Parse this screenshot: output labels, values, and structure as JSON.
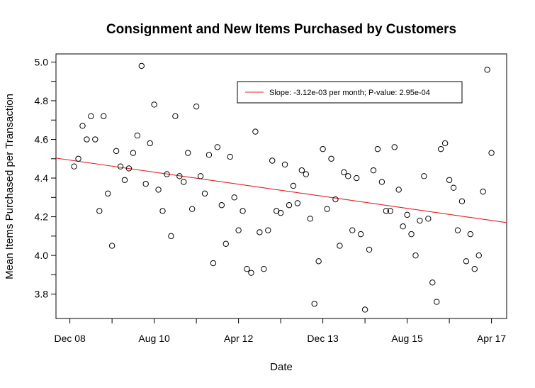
{
  "chart_data": {
    "type": "scatter",
    "title": "Consignment and New Items Purchased by Customers",
    "xlabel": "Date",
    "ylabel": "Mean Items Purchased per Transaction",
    "x_ticks": [
      "Dec 08",
      "Aug 10",
      "Apr 12",
      "Dec 13",
      "Aug 15",
      "Apr 17"
    ],
    "x_unit": "months since Dec 08",
    "x_tick_values": [
      0,
      20,
      40,
      60,
      80,
      100
    ],
    "xlim": [
      -3.3,
      103.6
    ],
    "y_ticks": [
      "3.8",
      "4.0",
      "4.2",
      "4.4",
      "4.6",
      "4.8",
      "5.0"
    ],
    "ylim": [
      3.674,
      5.042
    ],
    "grid": false,
    "legend_position": "top-right",
    "series": [
      {
        "color": "#000000",
        "marker": "open-circle",
        "x": [
          1,
          2,
          3,
          4,
          5,
          6,
          7,
          8,
          9,
          10,
          11,
          12,
          13,
          14,
          15,
          16,
          17,
          18,
          19,
          20,
          21,
          22,
          23,
          24,
          25,
          26,
          27,
          28,
          29,
          30,
          31,
          32,
          33,
          34,
          35,
          36,
          37,
          38,
          39,
          40,
          41,
          42,
          43,
          44,
          45,
          46,
          47,
          48,
          49,
          50,
          51,
          52,
          53,
          54,
          55,
          56,
          57,
          58,
          59,
          60,
          61,
          62,
          63,
          64,
          65,
          66,
          67,
          68,
          69,
          70,
          71,
          72,
          73,
          74,
          75,
          76,
          77,
          78,
          79,
          80,
          81,
          82,
          83,
          84,
          85,
          86,
          87,
          88,
          89,
          90,
          91,
          92,
          93,
          94,
          95,
          96,
          97,
          98,
          99,
          100
        ],
        "y": [
          4.46,
          4.5,
          4.67,
          4.6,
          4.72,
          4.6,
          4.23,
          4.72,
          4.32,
          4.05,
          4.54,
          4.46,
          4.39,
          4.45,
          4.53,
          4.62,
          4.98,
          4.37,
          4.58,
          4.78,
          4.34,
          4.23,
          4.42,
          4.1,
          4.72,
          4.41,
          4.38,
          4.53,
          4.24,
          4.77,
          4.41,
          4.32,
          4.52,
          3.96,
          4.56,
          4.26,
          4.06,
          4.51,
          4.3,
          4.13,
          4.23,
          3.93,
          3.91,
          4.64,
          4.12,
          3.93,
          4.13,
          4.49,
          4.23,
          4.22,
          4.47,
          4.26,
          4.36,
          4.27,
          4.44,
          4.42,
          4.19,
          3.75,
          3.97,
          4.55,
          4.24,
          4.5,
          4.29,
          4.05,
          4.43,
          4.41,
          4.13,
          4.4,
          4.11,
          3.72,
          4.03,
          4.44,
          4.55,
          4.38,
          4.23,
          4.23,
          4.56,
          4.34,
          4.15,
          4.21,
          4.11,
          4.0,
          4.18,
          4.41,
          4.19,
          3.86,
          3.76,
          4.55,
          4.58,
          4.39,
          4.35,
          4.13,
          4.28,
          3.97,
          4.11,
          3.93,
          4.0,
          4.33,
          4.96,
          4.53
        ]
      }
    ],
    "trend_line": {
      "color": "#e02020",
      "intercept": 4.493,
      "slope": -0.00312
    },
    "legend": {
      "text": "Slope: -3.12e-03 per month; P-value: 2.95e-04",
      "color": "#e02020"
    }
  }
}
